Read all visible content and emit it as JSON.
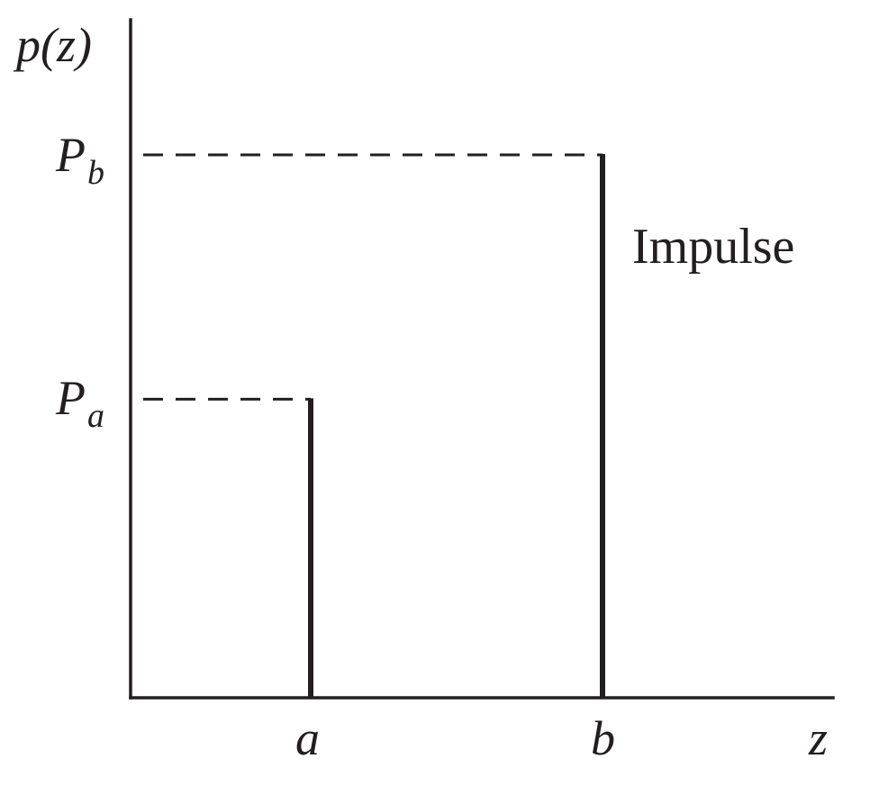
{
  "chart_data": {
    "type": "bar",
    "ylabel": "p(z)",
    "xlabel": "z",
    "x_tick_labels": [
      "a",
      "b"
    ],
    "y_tick_labels": [
      {
        "main": "P",
        "sub": "b"
      },
      {
        "main": "P",
        "sub": "a"
      }
    ],
    "impulses": [
      {
        "x_label": "a",
        "height_label": "P_a",
        "height": 0.55
      },
      {
        "x_label": "b",
        "height_label": "P_b",
        "height": 1.0
      }
    ],
    "annotation": "Impulse",
    "axis_color": "#231f20"
  }
}
